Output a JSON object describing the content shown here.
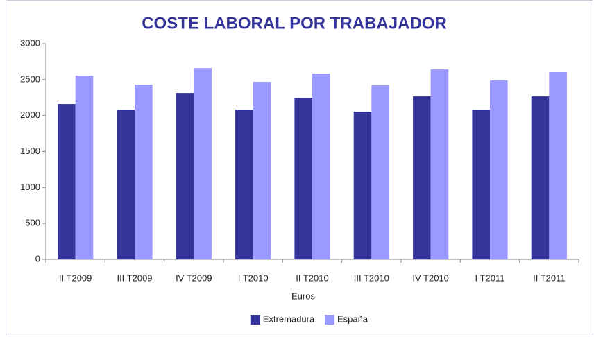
{
  "chart_data": {
    "type": "bar",
    "title": "COSTE LABORAL POR TRABAJADOR",
    "x_label": "Euros",
    "categories": [
      "II T2009",
      "III T2009",
      "IV T2009",
      "I T2010",
      "II T2010",
      "III T2010",
      "IV T2010",
      "I T2011",
      "II T2011"
    ],
    "series": [
      {
        "name": "Extremadura",
        "color": "#333399",
        "values": [
          2160,
          2083,
          2314,
          2083,
          2247,
          2054,
          2266,
          2083,
          2266
        ]
      },
      {
        "name": "España",
        "color": "#9999ff",
        "values": [
          2555,
          2430,
          2661,
          2469,
          2584,
          2420,
          2642,
          2488,
          2604
        ]
      }
    ],
    "ylim": [
      0,
      3000
    ],
    "yticks": [
      0,
      500,
      1000,
      1500,
      2000,
      2500,
      3000
    ],
    "legend": "bottom"
  }
}
